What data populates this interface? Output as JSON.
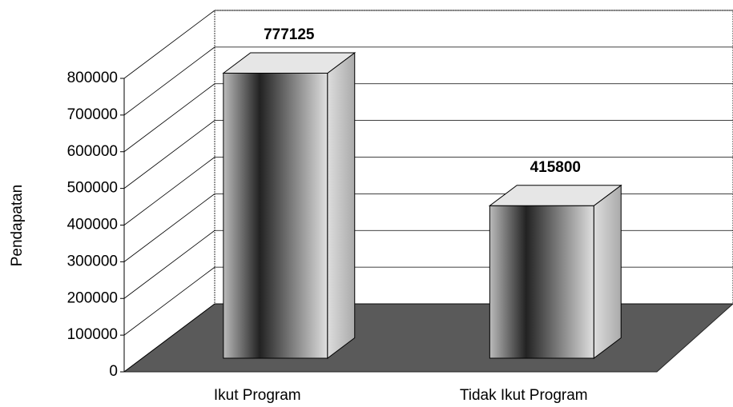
{
  "chart_data": {
    "type": "bar3d",
    "categories": [
      "Ikut Program",
      "Tidak Ikut Program"
    ],
    "values": [
      777125,
      415800
    ],
    "ylabel": "Pendapatan",
    "ylim": [
      0,
      800000
    ],
    "yticks": [
      0,
      100000,
      200000,
      300000,
      400000,
      500000,
      600000,
      700000,
      800000
    ],
    "grid": true
  }
}
